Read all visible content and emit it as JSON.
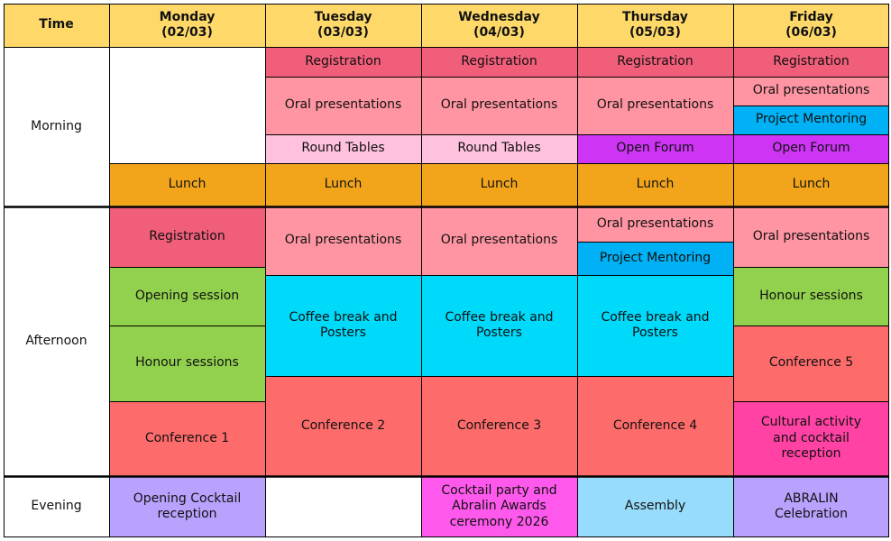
{
  "colors": {
    "header": "#fed96a",
    "registration": "#f05e7a",
    "oral": "#ff95a2",
    "round_tables": "#ffc1dd",
    "open_forum": "#cd34f4",
    "mentoring": "#00b1f5",
    "lunch": "#f2a51b",
    "opening": "#92d14e",
    "coffee": "#00dafa",
    "conference": "#fe6b6b",
    "cultural": "#ff42a3",
    "cocktail_opening": "#b9a2fd",
    "cocktail_awards": "#fe59ec",
    "assembly": "#98dcfc",
    "white": "#ffffff"
  },
  "header": {
    "time": "Time",
    "days": [
      "Monday\n(02/03)",
      "Tuesday\n(03/03)",
      "Wednesday\n(04/03)",
      "Thursday\n(05/03)",
      "Friday\n(06/03)"
    ]
  },
  "periods": {
    "morning": "Morning",
    "afternoon": "Afternoon",
    "evening": "Evening"
  },
  "sessions": {
    "registration": "Registration",
    "oral": "Oral presentations",
    "round_tables": "Round Tables",
    "open_forum": "Open Forum",
    "mentoring": "Project Mentoring",
    "lunch": "Lunch",
    "opening_session": "Opening session",
    "honour": "Honour sessions",
    "coffee": "Coffee break and\nPosters",
    "conf1": "Conference 1",
    "conf2": "Conference 2",
    "conf3": "Conference 3",
    "conf4": "Conference 4",
    "conf5": "Conference 5",
    "cultural": "Cultural activity\nand cocktail\nreception",
    "opening_cocktail": "Opening Cocktail\nreception",
    "awards": "Cocktail party and\nAbralin Awards\nceremony 2026",
    "assembly": "Assembly",
    "celebration": "ABRALIN\nCelebration"
  }
}
